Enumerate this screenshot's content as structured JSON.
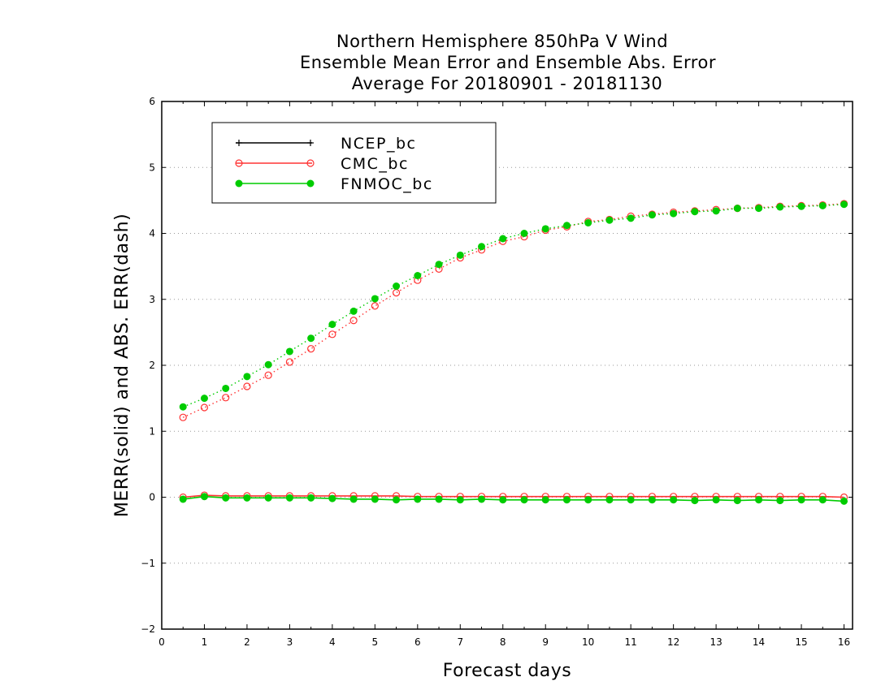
{
  "chart_data": {
    "type": "line",
    "title": [
      "Northern Hemisphere 850hPa V Wind",
      "Ensemble Mean Error and Ensemble Abs. Error",
      "Average For 20180901 - 20181130"
    ],
    "xlabel": "Forecast days",
    "ylabel": "MERR(solid) and ABS. ERR(dash)",
    "xlim": [
      0,
      16.2
    ],
    "ylim": [
      -2,
      6
    ],
    "xticks": [
      "0",
      "1",
      "2",
      "3",
      "4",
      "5",
      "6",
      "7",
      "8",
      "9",
      "10",
      "11",
      "12",
      "13",
      "14",
      "15",
      "16"
    ],
    "yticks": [
      "−2",
      "−1",
      "0",
      "1",
      "2",
      "3",
      "4",
      "5",
      "6"
    ],
    "grid": "horizontal dotted",
    "legend_position": "top-left",
    "x": [
      0.5,
      1,
      1.5,
      2,
      2.5,
      3,
      3.5,
      4,
      4.5,
      5,
      5.5,
      6,
      6.5,
      7,
      7.5,
      8,
      8.5,
      9,
      9.5,
      10,
      10.5,
      11,
      11.5,
      12,
      12.5,
      13,
      13.5,
      14,
      14.5,
      15,
      15.5,
      16
    ],
    "series": [
      {
        "name": "NCEP_bc",
        "color": "#000000",
        "marker": "plus",
        "merr": [],
        "abs_err": []
      },
      {
        "name": "CMC_bc",
        "color": "#ff3333",
        "marker": "open-circle",
        "merr": [
          0.0,
          0.03,
          0.02,
          0.02,
          0.02,
          0.02,
          0.02,
          0.02,
          0.02,
          0.02,
          0.02,
          0.01,
          0.01,
          0.01,
          0.01,
          0.01,
          0.01,
          0.01,
          0.01,
          0.01,
          0.01,
          0.01,
          0.01,
          0.01,
          0.01,
          0.01,
          0.01,
          0.01,
          0.01,
          0.01,
          0.01,
          0.0
        ],
        "abs_err": [
          1.21,
          1.36,
          1.51,
          1.68,
          1.85,
          2.05,
          2.25,
          2.47,
          2.68,
          2.9,
          3.1,
          3.29,
          3.46,
          3.63,
          3.75,
          3.88,
          3.95,
          4.05,
          4.1,
          4.18,
          4.21,
          4.26,
          4.29,
          4.32,
          4.34,
          4.36,
          4.38,
          4.39,
          4.41,
          4.42,
          4.43,
          4.45
        ]
      },
      {
        "name": "FNMOC_bc",
        "color": "#00cc00",
        "marker": "filled-circle",
        "merr": [
          -0.03,
          0.01,
          -0.01,
          -0.01,
          -0.01,
          -0.01,
          -0.01,
          -0.02,
          -0.03,
          -0.03,
          -0.04,
          -0.03,
          -0.03,
          -0.04,
          -0.03,
          -0.04,
          -0.04,
          -0.04,
          -0.04,
          -0.04,
          -0.04,
          -0.04,
          -0.04,
          -0.04,
          -0.05,
          -0.04,
          -0.05,
          -0.04,
          -0.05,
          -0.04,
          -0.04,
          -0.06
        ],
        "abs_err": [
          1.37,
          1.5,
          1.65,
          1.83,
          2.01,
          2.21,
          2.41,
          2.62,
          2.82,
          3.01,
          3.2,
          3.36,
          3.53,
          3.67,
          3.8,
          3.92,
          4.0,
          4.07,
          4.12,
          4.16,
          4.2,
          4.23,
          4.28,
          4.3,
          4.33,
          4.34,
          4.38,
          4.38,
          4.4,
          4.41,
          4.42,
          4.44
        ]
      }
    ]
  }
}
